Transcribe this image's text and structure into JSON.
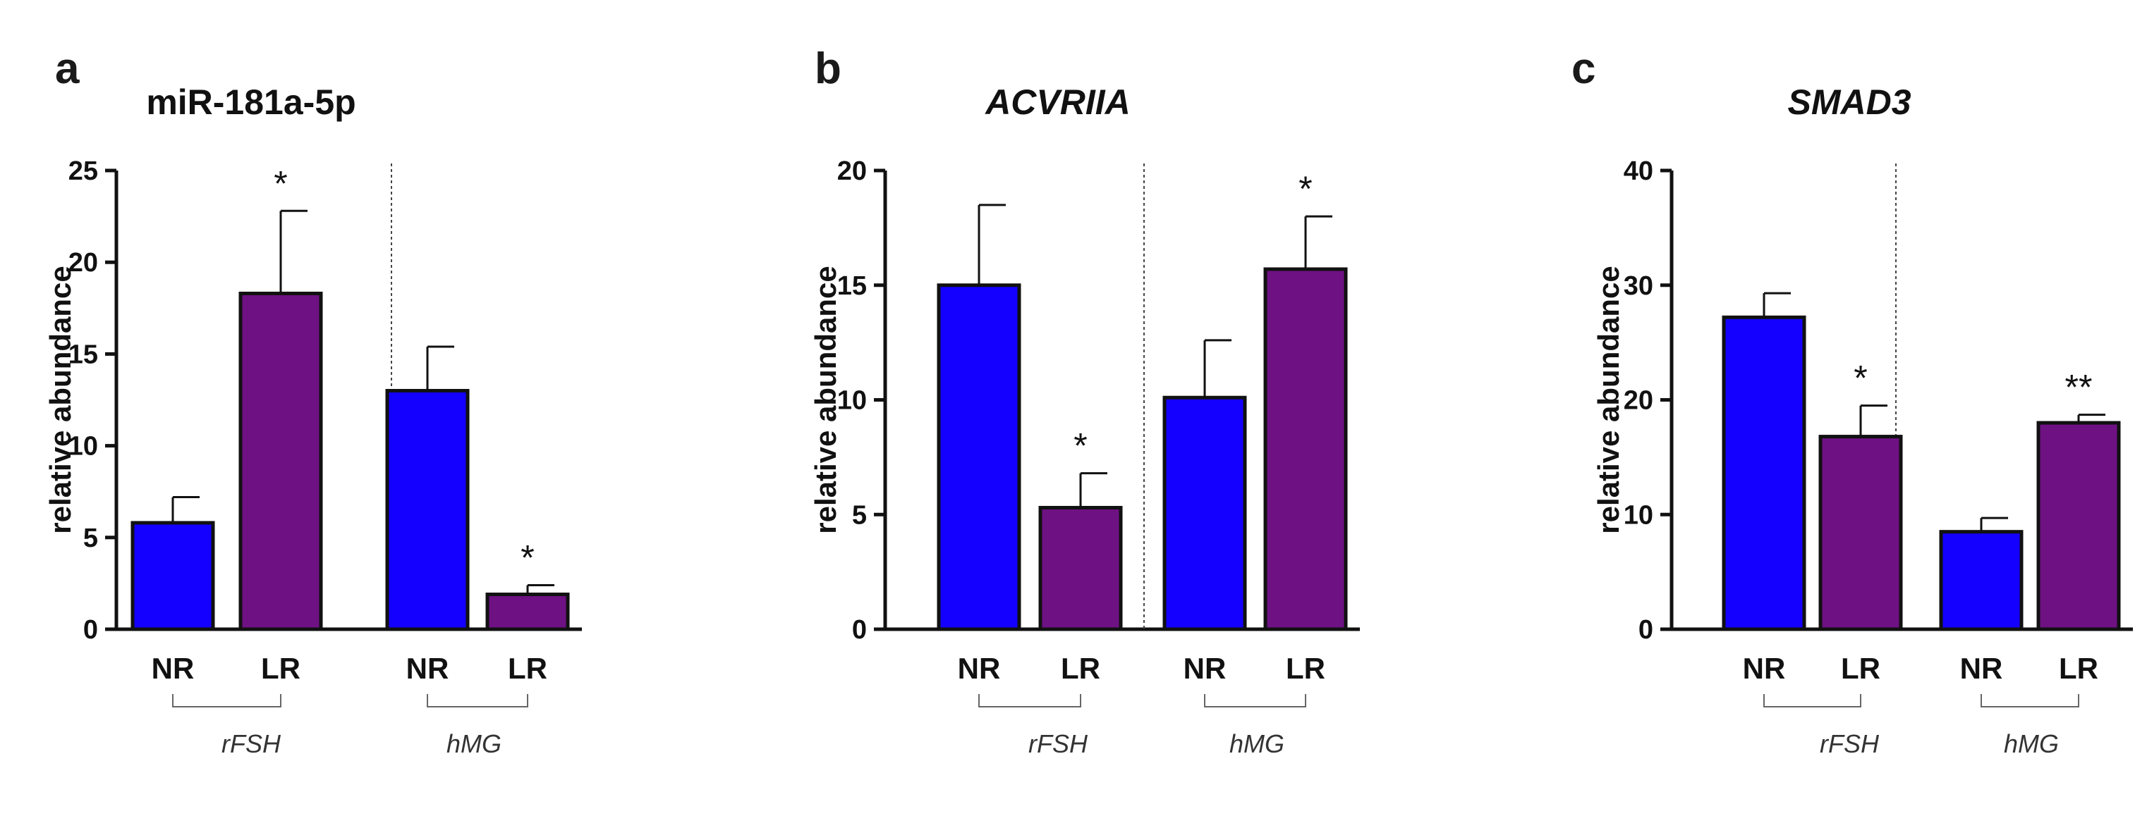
{
  "chart_data": [
    {
      "panel": "a",
      "type": "bar",
      "title": "miR-181a-5p",
      "title_italic": false,
      "ylabel": "relative abundance",
      "ylim": [
        0,
        25
      ],
      "yticks": [
        0,
        5,
        10,
        15,
        20,
        25
      ],
      "categories": [
        "NR",
        "LR",
        "NR",
        "LR"
      ],
      "groups": [
        "rFSH",
        "rFSH",
        "hMG",
        "hMG"
      ],
      "group_names": [
        "rFSH",
        "hMG"
      ],
      "values": [
        5.8,
        18.3,
        13.0,
        1.9
      ],
      "errors": [
        1.4,
        4.5,
        2.4,
        0.5
      ],
      "significance": [
        "",
        "*",
        "",
        "*"
      ],
      "colors": [
        "#1400ff",
        "#6e1183",
        "#1400ff",
        "#6e1183"
      ]
    },
    {
      "panel": "b",
      "type": "bar",
      "title": "ACVRIIA",
      "title_italic": true,
      "ylabel": "relative abundance",
      "ylim": [
        0,
        20
      ],
      "yticks": [
        0,
        5,
        10,
        15,
        20
      ],
      "categories": [
        "NR",
        "LR",
        "NR",
        "LR"
      ],
      "groups": [
        "rFSH",
        "rFSH",
        "hMG",
        "hMG"
      ],
      "group_names": [
        "rFSH",
        "hMG"
      ],
      "values": [
        15.0,
        5.3,
        10.1,
        15.7
      ],
      "errors": [
        3.5,
        1.5,
        2.5,
        2.3
      ],
      "significance": [
        "",
        "*",
        "",
        "*"
      ],
      "colors": [
        "#1400ff",
        "#6e1183",
        "#1400ff",
        "#6e1183"
      ]
    },
    {
      "panel": "c",
      "type": "bar",
      "title": "SMAD3",
      "title_italic": true,
      "ylabel": "relative abundance",
      "ylim": [
        0,
        40
      ],
      "yticks": [
        0,
        10,
        20,
        30,
        40
      ],
      "categories": [
        "NR",
        "LR",
        "NR",
        "LR"
      ],
      "groups": [
        "rFSH",
        "rFSH",
        "hMG",
        "hMG"
      ],
      "group_names": [
        "rFSH",
        "hMG"
      ],
      "values": [
        27.2,
        16.8,
        8.5,
        18.0
      ],
      "errors": [
        2.1,
        2.7,
        1.2,
        0.7
      ],
      "significance": [
        "",
        "*",
        "",
        "**"
      ],
      "colors": [
        "#1400ff",
        "#6e1183",
        "#1400ff",
        "#6e1183"
      ]
    }
  ]
}
